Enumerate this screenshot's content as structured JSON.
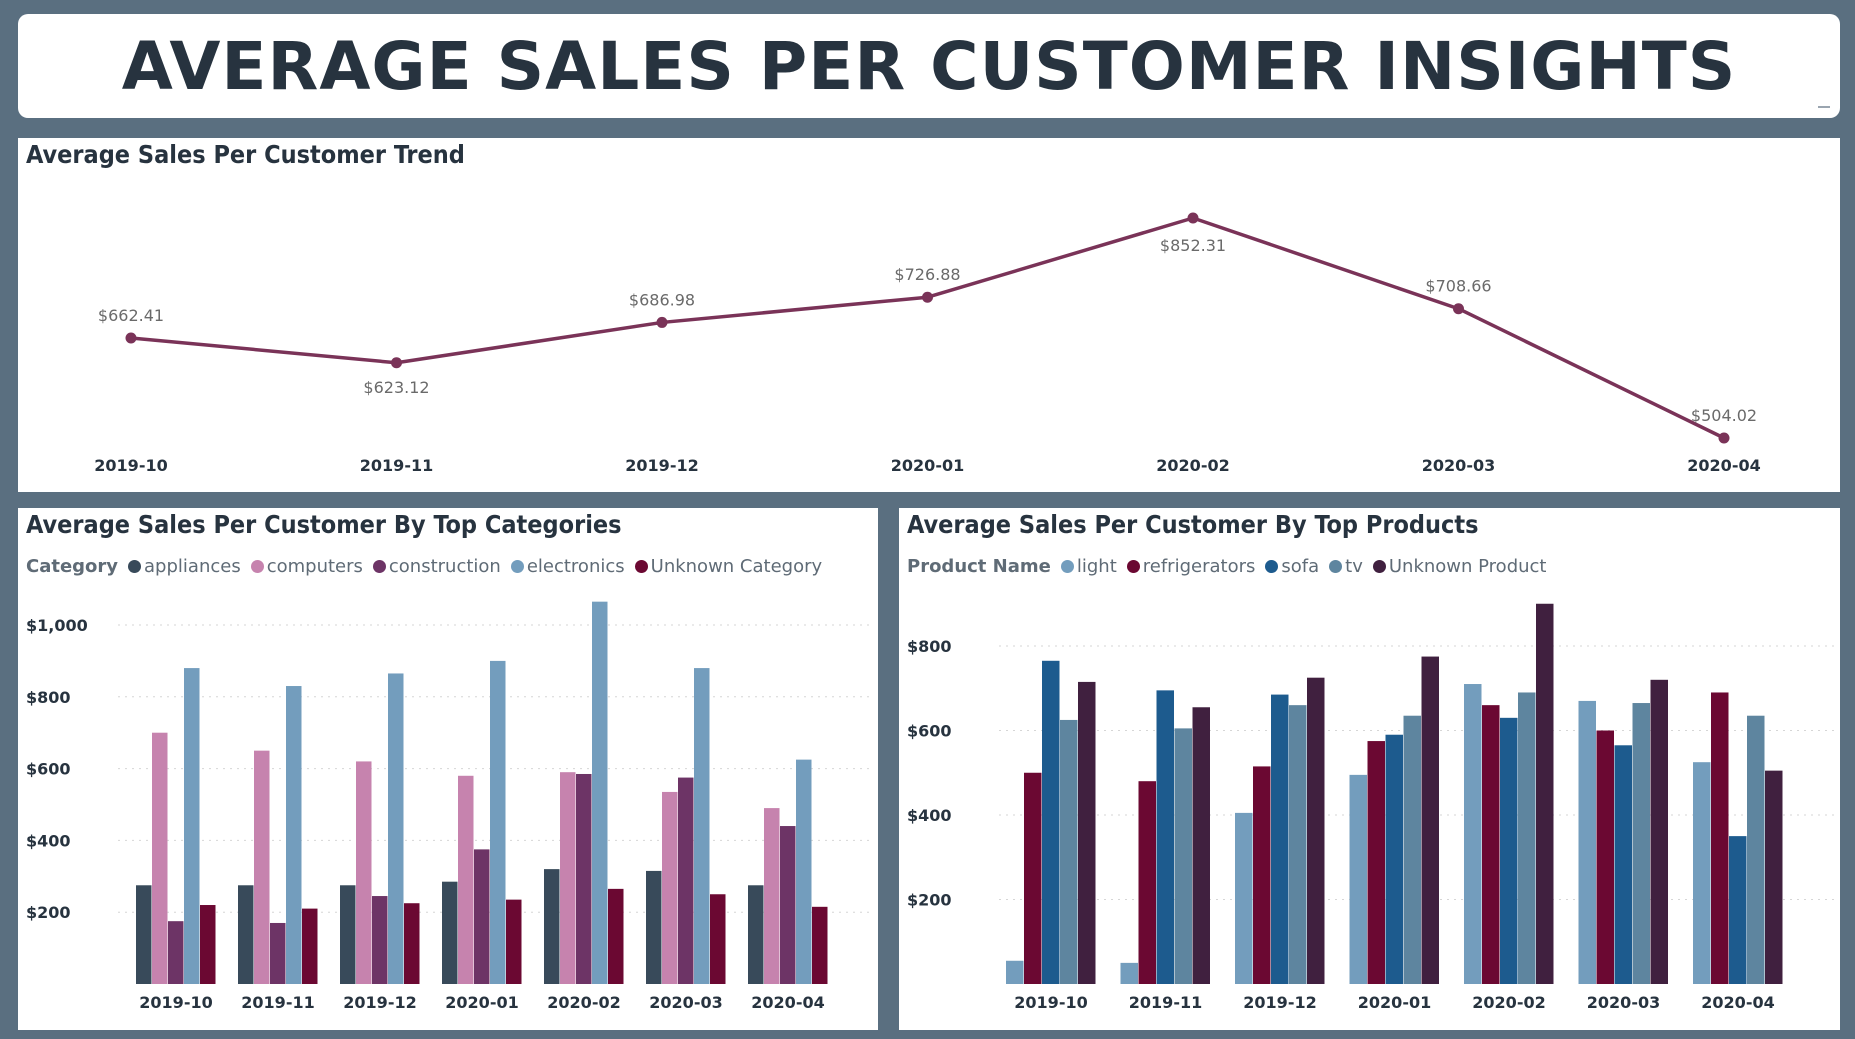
{
  "page": {
    "title": "AVERAGE SALES PER CUSTOMER INSIGHTS"
  },
  "colors": {
    "background": "#5a6f80",
    "title_text": "#27333f",
    "trend_line": "#7a3358"
  },
  "chart_data": [
    {
      "id": "trend",
      "type": "line",
      "title": "Average Sales Per Customer Trend",
      "categories": [
        "2019-10",
        "2019-11",
        "2019-12",
        "2020-01",
        "2020-02",
        "2020-03",
        "2020-04"
      ],
      "values": [
        662.41,
        623.12,
        686.98,
        726.88,
        852.31,
        708.66,
        504.02
      ],
      "data_labels": [
        "$662.41",
        "$623.12",
        "$686.98",
        "$726.88",
        "$852.31",
        "$708.66",
        "$504.02"
      ],
      "y_axis_visible": false,
      "color": "#7a3358"
    },
    {
      "id": "categories",
      "type": "bar",
      "title": "Average Sales Per Customer By Top Categories",
      "legend_title": "Category",
      "legend_position": "top-left",
      "categories": [
        "2019-10",
        "2019-11",
        "2019-12",
        "2020-01",
        "2020-02",
        "2020-03",
        "2020-04"
      ],
      "yticks": [
        200,
        400,
        600,
        800,
        1000
      ],
      "ytick_labels": [
        "$200",
        "$400",
        "$600",
        "$800",
        "$1,000"
      ],
      "ylim": [
        0,
        1000
      ],
      "grid": true,
      "series": [
        {
          "name": "appliances",
          "color": "#384a5a",
          "values": [
            275,
            275,
            275,
            285,
            320,
            315,
            275
          ]
        },
        {
          "name": "computers",
          "color": "#c683ae",
          "values": [
            700,
            650,
            620,
            580,
            590,
            535,
            490
          ]
        },
        {
          "name": "construction",
          "color": "#6d3466",
          "values": [
            175,
            170,
            245,
            375,
            585,
            575,
            440
          ]
        },
        {
          "name": "electronics",
          "color": "#739dbd",
          "values": [
            880,
            830,
            865,
            900,
            1065,
            880,
            625
          ]
        },
        {
          "name": "Unknown Category",
          "color": "#6b0832",
          "values": [
            220,
            210,
            225,
            235,
            265,
            250,
            215
          ]
        }
      ]
    },
    {
      "id": "products",
      "type": "bar",
      "title": "Average Sales Per Customer By Top Products",
      "legend_title": "Product Name",
      "legend_position": "top-left",
      "categories": [
        "2019-10",
        "2019-11",
        "2019-12",
        "2020-01",
        "2020-02",
        "2020-03",
        "2020-04"
      ],
      "yticks": [
        200,
        400,
        600,
        800
      ],
      "ytick_labels": [
        "$200",
        "$400",
        "$600",
        "$800"
      ],
      "ylim": [
        0,
        800
      ],
      "grid": true,
      "series": [
        {
          "name": "light",
          "color": "#739dbd",
          "values": [
            55,
            50,
            405,
            495,
            710,
            670,
            525
          ]
        },
        {
          "name": "refrigerators",
          "color": "#6b0832",
          "values": [
            500,
            480,
            515,
            575,
            660,
            600,
            690
          ]
        },
        {
          "name": "sofa",
          "color": "#1d5b8e",
          "values": [
            765,
            695,
            685,
            590,
            630,
            565,
            350
          ]
        },
        {
          "name": "tv",
          "color": "#5e859f",
          "values": [
            625,
            605,
            660,
            635,
            690,
            665,
            635
          ]
        },
        {
          "name": "Unknown Product",
          "color": "#40203f",
          "values": [
            715,
            655,
            725,
            775,
            900,
            720,
            505
          ]
        }
      ]
    }
  ]
}
